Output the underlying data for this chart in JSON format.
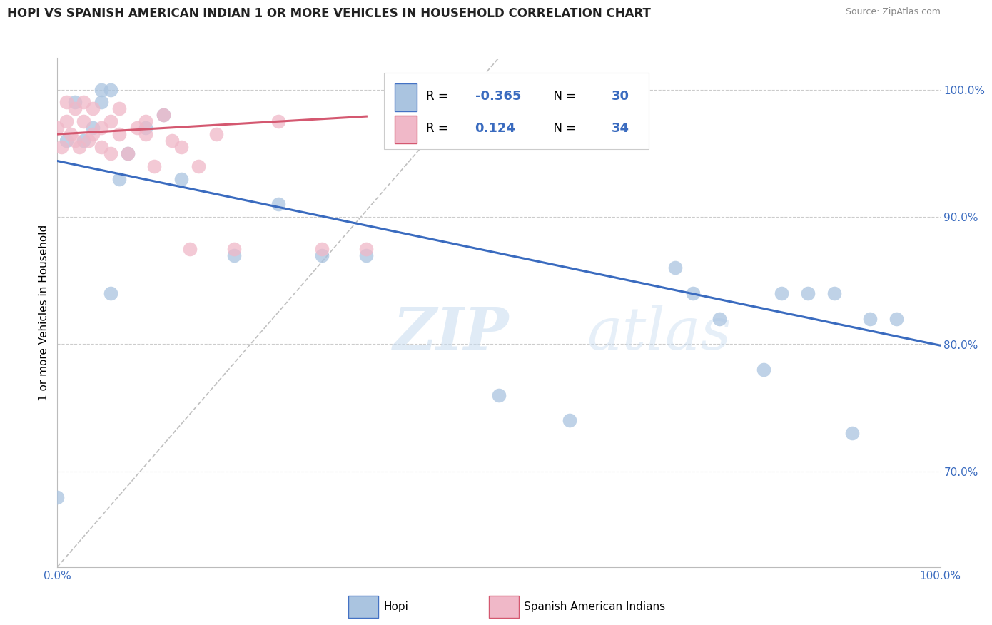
{
  "title": "HOPI VS SPANISH AMERICAN INDIAN 1 OR MORE VEHICLES IN HOUSEHOLD CORRELATION CHART",
  "source": "Source: ZipAtlas.com",
  "ylabel": "1 or more Vehicles in Household",
  "xlim": [
    0.0,
    1.0
  ],
  "ylim": [
    0.625,
    1.025
  ],
  "yticks": [
    0.7,
    0.8,
    0.9,
    1.0
  ],
  "ytick_labels": [
    "70.0%",
    "80.0%",
    "90.0%",
    "100.0%"
  ],
  "xtick_labels": [
    "0.0%",
    "100.0%"
  ],
  "hopi_R": "-0.365",
  "hopi_N": "30",
  "spanish_R": "0.124",
  "spanish_N": "34",
  "legend_entries": [
    "Hopi",
    "Spanish American Indians"
  ],
  "hopi_color": "#aac4e0",
  "spanish_color": "#f0b8c8",
  "hopi_line_color": "#3a6bbf",
  "spanish_line_color": "#d45870",
  "diagonal_color": "#b0b0b0",
  "watermark_zip": "ZIP",
  "watermark_atlas": "atlas",
  "hopi_x": [
    0.02,
    0.03,
    0.04,
    0.05,
    0.05,
    0.06,
    0.07,
    0.08,
    0.1,
    0.12,
    0.14,
    0.2,
    0.25,
    0.3,
    0.35,
    0.5,
    0.58,
    0.7,
    0.72,
    0.75,
    0.8,
    0.82,
    0.85,
    0.88,
    0.9,
    0.92,
    0.95,
    0.01,
    0.06,
    0.0
  ],
  "hopi_y": [
    0.99,
    0.96,
    0.97,
    1.0,
    0.99,
    1.0,
    0.93,
    0.95,
    0.97,
    0.98,
    0.93,
    0.87,
    0.91,
    0.87,
    0.87,
    0.76,
    0.74,
    0.86,
    0.84,
    0.82,
    0.78,
    0.84,
    0.84,
    0.84,
    0.73,
    0.82,
    0.82,
    0.96,
    0.84,
    0.68
  ],
  "spanish_x": [
    0.0,
    0.005,
    0.01,
    0.01,
    0.015,
    0.02,
    0.02,
    0.025,
    0.03,
    0.03,
    0.035,
    0.04,
    0.04,
    0.05,
    0.05,
    0.06,
    0.06,
    0.07,
    0.07,
    0.08,
    0.09,
    0.1,
    0.1,
    0.11,
    0.12,
    0.13,
    0.14,
    0.15,
    0.16,
    0.18,
    0.2,
    0.25,
    0.3,
    0.35
  ],
  "spanish_y": [
    0.97,
    0.955,
    0.975,
    0.99,
    0.965,
    0.96,
    0.985,
    0.955,
    0.975,
    0.99,
    0.96,
    0.965,
    0.985,
    0.955,
    0.97,
    0.95,
    0.975,
    0.965,
    0.985,
    0.95,
    0.97,
    0.965,
    0.975,
    0.94,
    0.98,
    0.96,
    0.955,
    0.875,
    0.94,
    0.965,
    0.875,
    0.975,
    0.875,
    0.875
  ]
}
